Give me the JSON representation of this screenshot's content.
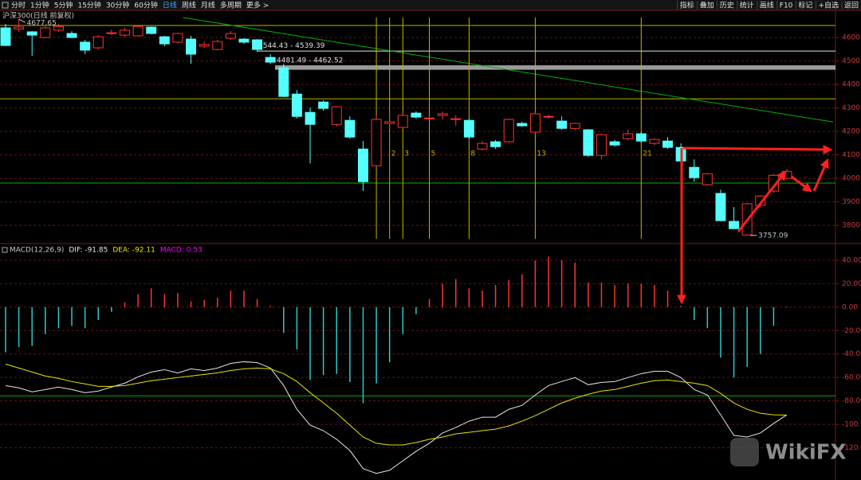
{
  "toolbar": {
    "left": [
      "分时",
      "1分钟",
      "5分钟",
      "15分钟",
      "30分钟",
      "60分钟",
      "日线",
      "周线",
      "月线",
      "多周期",
      "更多 >"
    ],
    "right": [
      "指标",
      "叠加",
      "历史",
      "统计",
      "画线",
      "F10",
      "标记",
      "+自选",
      "返回"
    ]
  },
  "watermark": "WikiFX",
  "chart_data": [
    {
      "type": "candlestick",
      "title": "沪深300(日线 前复权)",
      "open": [
        4641,
        4636,
        4624,
        4600,
        4631,
        4617,
        4580,
        4556,
        4617,
        4610,
        4607,
        4644,
        4603,
        4580,
        4593,
        4563,
        4549,
        4597,
        4593,
        4590,
        4515,
        4471,
        4359,
        4281,
        4325,
        4230,
        4247,
        4125,
        4054,
        4234,
        4217,
        4278,
        4254,
        4268,
        4251,
        4247,
        4125,
        4156,
        4156,
        4234,
        4197,
        4261,
        4244,
        4213,
        4207,
        4098,
        4156,
        4169,
        4190,
        4149,
        4159,
        4132,
        4047,
        3973,
        3936,
        3817,
        3759,
        3885,
        3946,
        4000
      ],
      "high": [
        4658,
        4677.65,
        4627,
        4647,
        4658,
        4627,
        4590,
        4610,
        4634,
        4641,
        4651,
        4647,
        4607,
        4620,
        4607,
        4583,
        4590,
        4627,
        4597,
        4593,
        4529,
        4488,
        4376,
        4302,
        4332,
        4308,
        4264,
        4159,
        4271,
        4271,
        4278,
        4285,
        4264,
        4285,
        4268,
        4254,
        4159,
        4163,
        4254,
        4241,
        4281,
        4271,
        4264,
        4237,
        4210,
        4190,
        4163,
        4207,
        4197,
        4169,
        4176,
        4149,
        4081,
        4024,
        3952,
        3878,
        3895,
        3929,
        4020,
        4040
      ],
      "low": [
        4563,
        4624,
        4522,
        4597,
        4624,
        4597,
        4529,
        4550,
        4610,
        4603,
        4603,
        4614,
        4563,
        4576,
        4488,
        4556,
        4546,
        4590,
        4573,
        4539,
        4488,
        4346,
        4254,
        4064,
        4288,
        4220,
        4169,
        3946,
        4050,
        4210,
        4210,
        4254,
        4251,
        4251,
        4224,
        4169,
        4118,
        4125,
        4152,
        4220,
        4190,
        4254,
        4207,
        4207,
        4091,
        4081,
        4135,
        4162,
        4152,
        4142,
        4125,
        4067,
        3986,
        3969,
        3817,
        3783,
        3757.09,
        3878,
        3939,
        3995
      ],
      "close": [
        4566,
        4644,
        4610,
        4641,
        4647,
        4600,
        4546,
        4603,
        4620,
        4631,
        4647,
        4617,
        4573,
        4617,
        4529,
        4570,
        4583,
        4617,
        4580,
        4549,
        4495,
        4349,
        4264,
        4230,
        4298,
        4305,
        4176,
        3986,
        4251,
        4241,
        4268,
        4261,
        4257,
        4275,
        4254,
        4176,
        4149,
        4135,
        4251,
        4224,
        4275,
        4264,
        4213,
        4234,
        4098,
        4186,
        4142,
        4190,
        4159,
        4166,
        4132,
        4074,
        4003,
        4020,
        3820,
        3786,
        3892,
        3925,
        4013,
        4030
      ],
      "up_color": "#ff3232",
      "down_color": "#54ffff",
      "ylim": [
        3736,
        4685
      ],
      "yticks": [
        3800,
        3900,
        4000,
        4100,
        4200,
        4300,
        4400,
        4500,
        4600
      ],
      "grid": true,
      "levels": [
        {
          "value": 4651,
          "color": "#b4b400"
        },
        {
          "value": 4339,
          "color": "#b4b400"
        },
        {
          "value": 3980,
          "color": "#00b400"
        }
      ],
      "bands": [
        {
          "label": "4544.43 - 4539.39",
          "range": [
            4539.39,
            4544.43
          ]
        },
        {
          "label": "4481.49 - 4462.52",
          "range": [
            4462.52,
            4481.49
          ]
        }
      ],
      "trendline": {
        "x": [
          13.4,
          62.5
        ],
        "y": [
          4685,
          4240
        ],
        "color": "#00b400"
      },
      "fib_lines": {
        "x": [
          28,
          29,
          30,
          32,
          35,
          40,
          48
        ],
        "labels": [
          "1",
          "2",
          "3",
          "5",
          "8",
          "13",
          "21"
        ],
        "color": "#c8b400"
      },
      "high_mark": {
        "value": 4677.65,
        "label": "4677.65"
      },
      "low_mark": {
        "value": 3757.09,
        "label": "3757.09"
      }
    },
    {
      "type": "macd",
      "title": "MACD(12,26,9)",
      "series": [
        {
          "label": "DIF: -91.85",
          "color": "#e6e6e6",
          "values": [
            -66.9,
            -68.9,
            -72.3,
            -70.3,
            -68.2,
            -70.3,
            -73.0,
            -71.6,
            -68.2,
            -64.9,
            -59.5,
            -55.4,
            -53.4,
            -56.1,
            -52.7,
            -54.1,
            -52.0,
            -48.0,
            -46.6,
            -47.3,
            -52.0,
            -66.9,
            -87.2,
            -100.7,
            -105.4,
            -112.8,
            -122.3,
            -137.8,
            -141.9,
            -139.2,
            -131.1,
            -123.0,
            -116.2,
            -107.4,
            -102.7,
            -97.3,
            -93.9,
            -93.9,
            -87.2,
            -83.8,
            -75.0,
            -66.9,
            -63.5,
            -60.1,
            -66.2,
            -64.2,
            -63.5,
            -60.1,
            -56.8,
            -54.7,
            -54.7,
            -60.1,
            -70.3,
            -75.0,
            -91.9,
            -109.5,
            -110.8,
            -107.4,
            -99.3,
            -91.85
          ]
        },
        {
          "label": "DEA: -92.11",
          "color": "#e6e600",
          "values": [
            -48.6,
            -52.0,
            -55.4,
            -58.8,
            -60.8,
            -63.5,
            -65.5,
            -67.6,
            -67.6,
            -66.9,
            -64.9,
            -62.8,
            -61.5,
            -60.1,
            -58.8,
            -57.4,
            -56.1,
            -54.1,
            -52.7,
            -52.0,
            -52.7,
            -56.8,
            -63.5,
            -73.0,
            -81.8,
            -90.5,
            -100.7,
            -110.8,
            -116.2,
            -117.6,
            -117.6,
            -115.5,
            -112.8,
            -110.8,
            -108.1,
            -106.8,
            -105.4,
            -104.1,
            -101.4,
            -97.3,
            -92.6,
            -87.2,
            -81.8,
            -77.7,
            -74.3,
            -71.6,
            -70.3,
            -67.6,
            -64.9,
            -62.8,
            -62.2,
            -63.5,
            -64.9,
            -66.9,
            -73.6,
            -81.8,
            -87.2,
            -90.5,
            -91.9,
            -92.11
          ]
        },
        {
          "label": "MACD: 0.53",
          "color": "#ff00ff",
          "up_color": "#ff3232",
          "down_color": "#2ec8c8",
          "values": [
            -38.5,
            -34,
            -33,
            -23,
            -18,
            -16,
            -18,
            -11,
            -4,
            4,
            11,
            16,
            11,
            12,
            5,
            6,
            8,
            14,
            14,
            7,
            1,
            -22,
            -36,
            -62,
            -58,
            -57,
            -64,
            -82,
            -65,
            -47,
            -23,
            -6,
            7,
            20,
            24,
            16,
            14,
            19,
            23,
            28,
            40,
            43,
            40,
            38,
            21,
            21,
            19,
            20,
            20,
            19,
            14,
            1,
            -11,
            -18,
            -43,
            -60,
            -51,
            -40,
            -16,
            0.53
          ]
        }
      ],
      "ylim": [
        -147.5,
        51.5
      ],
      "yticks": [
        {
          "value": -120,
          "label": "-120.00"
        },
        {
          "value": -100,
          "label": "-100.00"
        },
        {
          "value": -80,
          "label": "-80.00"
        },
        {
          "value": -60,
          "label": "-60.00"
        },
        {
          "value": -40,
          "label": "-40.00"
        },
        {
          "value": -20,
          "label": "-20.00"
        },
        {
          "value": 0,
          "label": "0.00"
        },
        {
          "value": 20,
          "label": "20.00"
        },
        {
          "value": 40,
          "label": "40.00"
        }
      ],
      "grid": true,
      "levels": [
        {
          "value": -75.7,
          "color": "#00b400"
        }
      ]
    }
  ]
}
